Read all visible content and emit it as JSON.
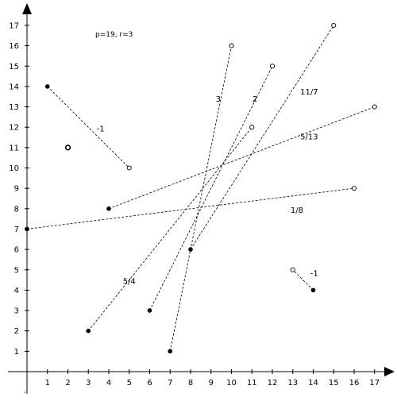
{
  "params_text": "p=19, r=3",
  "axes": {
    "x_ticks": [
      "1",
      "2",
      "3",
      "4",
      "5",
      "6",
      "7",
      "8",
      "9",
      "10",
      "11",
      "12",
      "13",
      "14",
      "15",
      "16",
      "17"
    ],
    "y_ticks": [
      "1",
      "2",
      "3",
      "4",
      "5",
      "6",
      "7",
      "8",
      "9",
      "10",
      "11",
      "12",
      "13",
      "14",
      "15",
      "16",
      "17"
    ],
    "origin_mark": "'"
  },
  "segments": [
    {
      "from": [
        1,
        14
      ],
      "to": [
        5,
        10
      ],
      "label": "-1",
      "label_at": [
        3.6,
        11.8
      ]
    },
    {
      "from": [
        0,
        7
      ],
      "to": [
        16,
        9
      ],
      "label": "1/8",
      "label_at": [
        13.2,
        7.8
      ]
    },
    {
      "from": [
        4,
        8
      ],
      "to": [
        17,
        13
      ],
      "label": "5/13",
      "label_at": [
        13.8,
        11.4
      ]
    },
    {
      "from": [
        3,
        2
      ],
      "to": [
        11,
        12
      ],
      "label": "5/4",
      "label_at": [
        5.0,
        4.3
      ]
    },
    {
      "from": [
        6,
        3
      ],
      "to": [
        12,
        15
      ],
      "label": "2",
      "label_at": [
        11.15,
        13.25
      ]
    },
    {
      "from": [
        7,
        1
      ],
      "to": [
        10,
        16
      ],
      "label": "3",
      "label_at": [
        9.35,
        13.25
      ]
    },
    {
      "from": [
        8,
        6
      ],
      "to": [
        15,
        17
      ],
      "label": "11/7",
      "label_at": [
        13.8,
        13.6
      ]
    },
    {
      "from": [
        14,
        4
      ],
      "to": [
        13,
        5
      ],
      "label": "-1",
      "label_at": [
        14.05,
        4.7
      ]
    }
  ],
  "isolated_points": [
    {
      "x": 2,
      "y": 11
    }
  ]
}
